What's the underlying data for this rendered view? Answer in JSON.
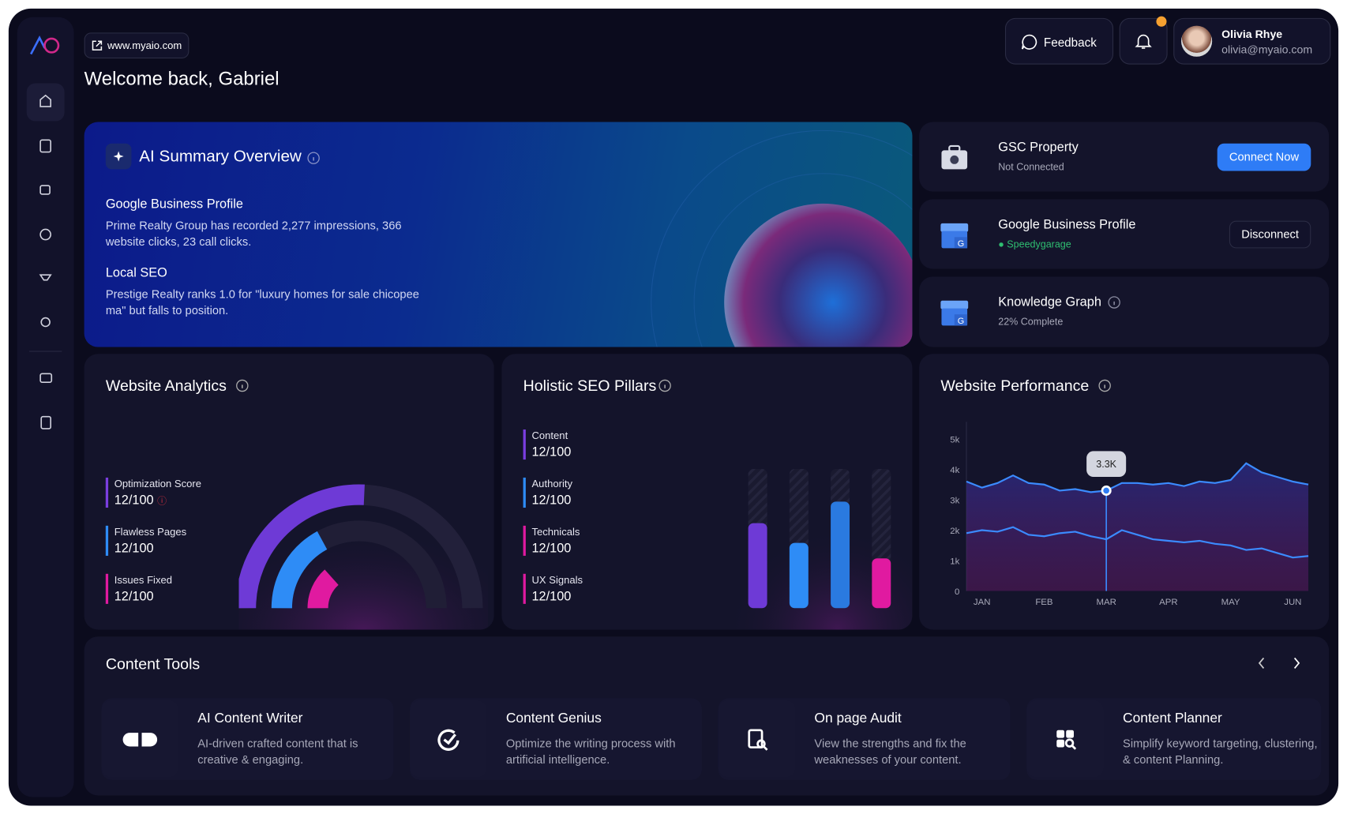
{
  "header": {
    "url": "www.myaio.com",
    "welcome": "Welcome back, Gabriel",
    "feedback": "Feedback",
    "user": {
      "name": "Olivia Rhye",
      "email": "olivia@myaio.com"
    }
  },
  "ai_summary": {
    "title": "AI Summary Overview",
    "sections": [
      {
        "heading": "Google Business Profile",
        "text": "Prime Realty Group has recorded 2,277 impressions, 366 website clicks, 23 call clicks."
      },
      {
        "heading": "Local SEO",
        "text": "Prestige Realty ranks 1.0 for \"luxury homes for sale chicopee ma\" but falls to position."
      }
    ]
  },
  "integrations": [
    {
      "name": "GSC Property",
      "status": "Not Connected",
      "action": "Connect Now"
    },
    {
      "name": "Google Business Profile",
      "status": "Speedygarage",
      "action": "Disconnect"
    },
    {
      "name": "Knowledge Graph",
      "status": "22% Complete"
    }
  ],
  "website_analytics": {
    "title": "Website Analytics",
    "metrics": [
      {
        "label": "Optimization Score",
        "value": "12/100"
      },
      {
        "label": "Flawless Pages",
        "value": "12/100"
      },
      {
        "label": "Issues Fixed",
        "value": "12/100"
      }
    ]
  },
  "seo_pillars": {
    "title": "Holistic SEO Pillars",
    "metrics": [
      {
        "label": "Content",
        "value": "12/100"
      },
      {
        "label": "Authority",
        "value": "12/100"
      },
      {
        "label": "Technicals",
        "value": "12/100"
      },
      {
        "label": "UX Signals",
        "value": "12/100"
      }
    ]
  },
  "chart_data": {
    "type": "line",
    "title": "Website Performance",
    "x": [
      -0.25,
      0,
      0.25,
      0.5,
      0.75,
      1,
      1.25,
      1.5,
      1.75,
      2,
      2.25,
      2.5,
      2.75,
      3,
      3.25,
      3.5,
      3.75,
      4,
      4.25,
      4.5,
      4.75,
      5,
      5.25
    ],
    "series": [
      {
        "color": "#3b8bff",
        "values": [
          3600,
          3400,
          3550,
          3800,
          3550,
          3500,
          3300,
          3350,
          3250,
          3300,
          3550,
          3550,
          3500,
          3550,
          3450,
          3600,
          3550,
          3650,
          4200,
          3900,
          3750,
          3600,
          3500
        ]
      },
      {
        "color": "#3b8bff",
        "values": [
          1900,
          2000,
          1950,
          2100,
          1850,
          1800,
          1900,
          1950,
          1800,
          1700,
          2000,
          1850,
          1700,
          1650,
          1600,
          1650,
          1550,
          1500,
          1350,
          1400,
          1250,
          1100,
          1150
        ]
      }
    ],
    "xlim": [
      -0.25,
      5.25
    ],
    "xticks": [
      {
        "value": 0,
        "label": "JAN"
      },
      {
        "value": 1,
        "label": "FEB"
      },
      {
        "value": 2,
        "label": "MAR"
      },
      {
        "value": 3,
        "label": "APR"
      },
      {
        "value": 4,
        "label": "MAY"
      },
      {
        "value": 5,
        "label": "JUN"
      }
    ],
    "ylim": [
      0,
      5000
    ],
    "yticks": [
      0,
      {
        "value": 1000,
        "label": "1k"
      },
      {
        "value": 2000,
        "label": "2k"
      },
      {
        "value": 3000,
        "label": "3k"
      },
      {
        "value": 4000,
        "label": "4k"
      },
      {
        "value": 5000,
        "label": "5k"
      }
    ],
    "grid": false,
    "tooltip": {
      "x": 2,
      "value": 3300,
      "label": "3.3K"
    }
  },
  "content_tools": {
    "title": "Content Tools",
    "tools": [
      {
        "title": "AI Content Writer",
        "description": "AI-driven crafted content that is creative & engaging."
      },
      {
        "title": "Content Genius",
        "description": "Optimize the writing process with artificial intelligence."
      },
      {
        "title": "On page Audit",
        "description": "View the strengths and fix the weaknesses of your content."
      },
      {
        "title": "Content Planner",
        "description": "Simplify keyword targeting, clustering, & content Planning."
      }
    ]
  }
}
